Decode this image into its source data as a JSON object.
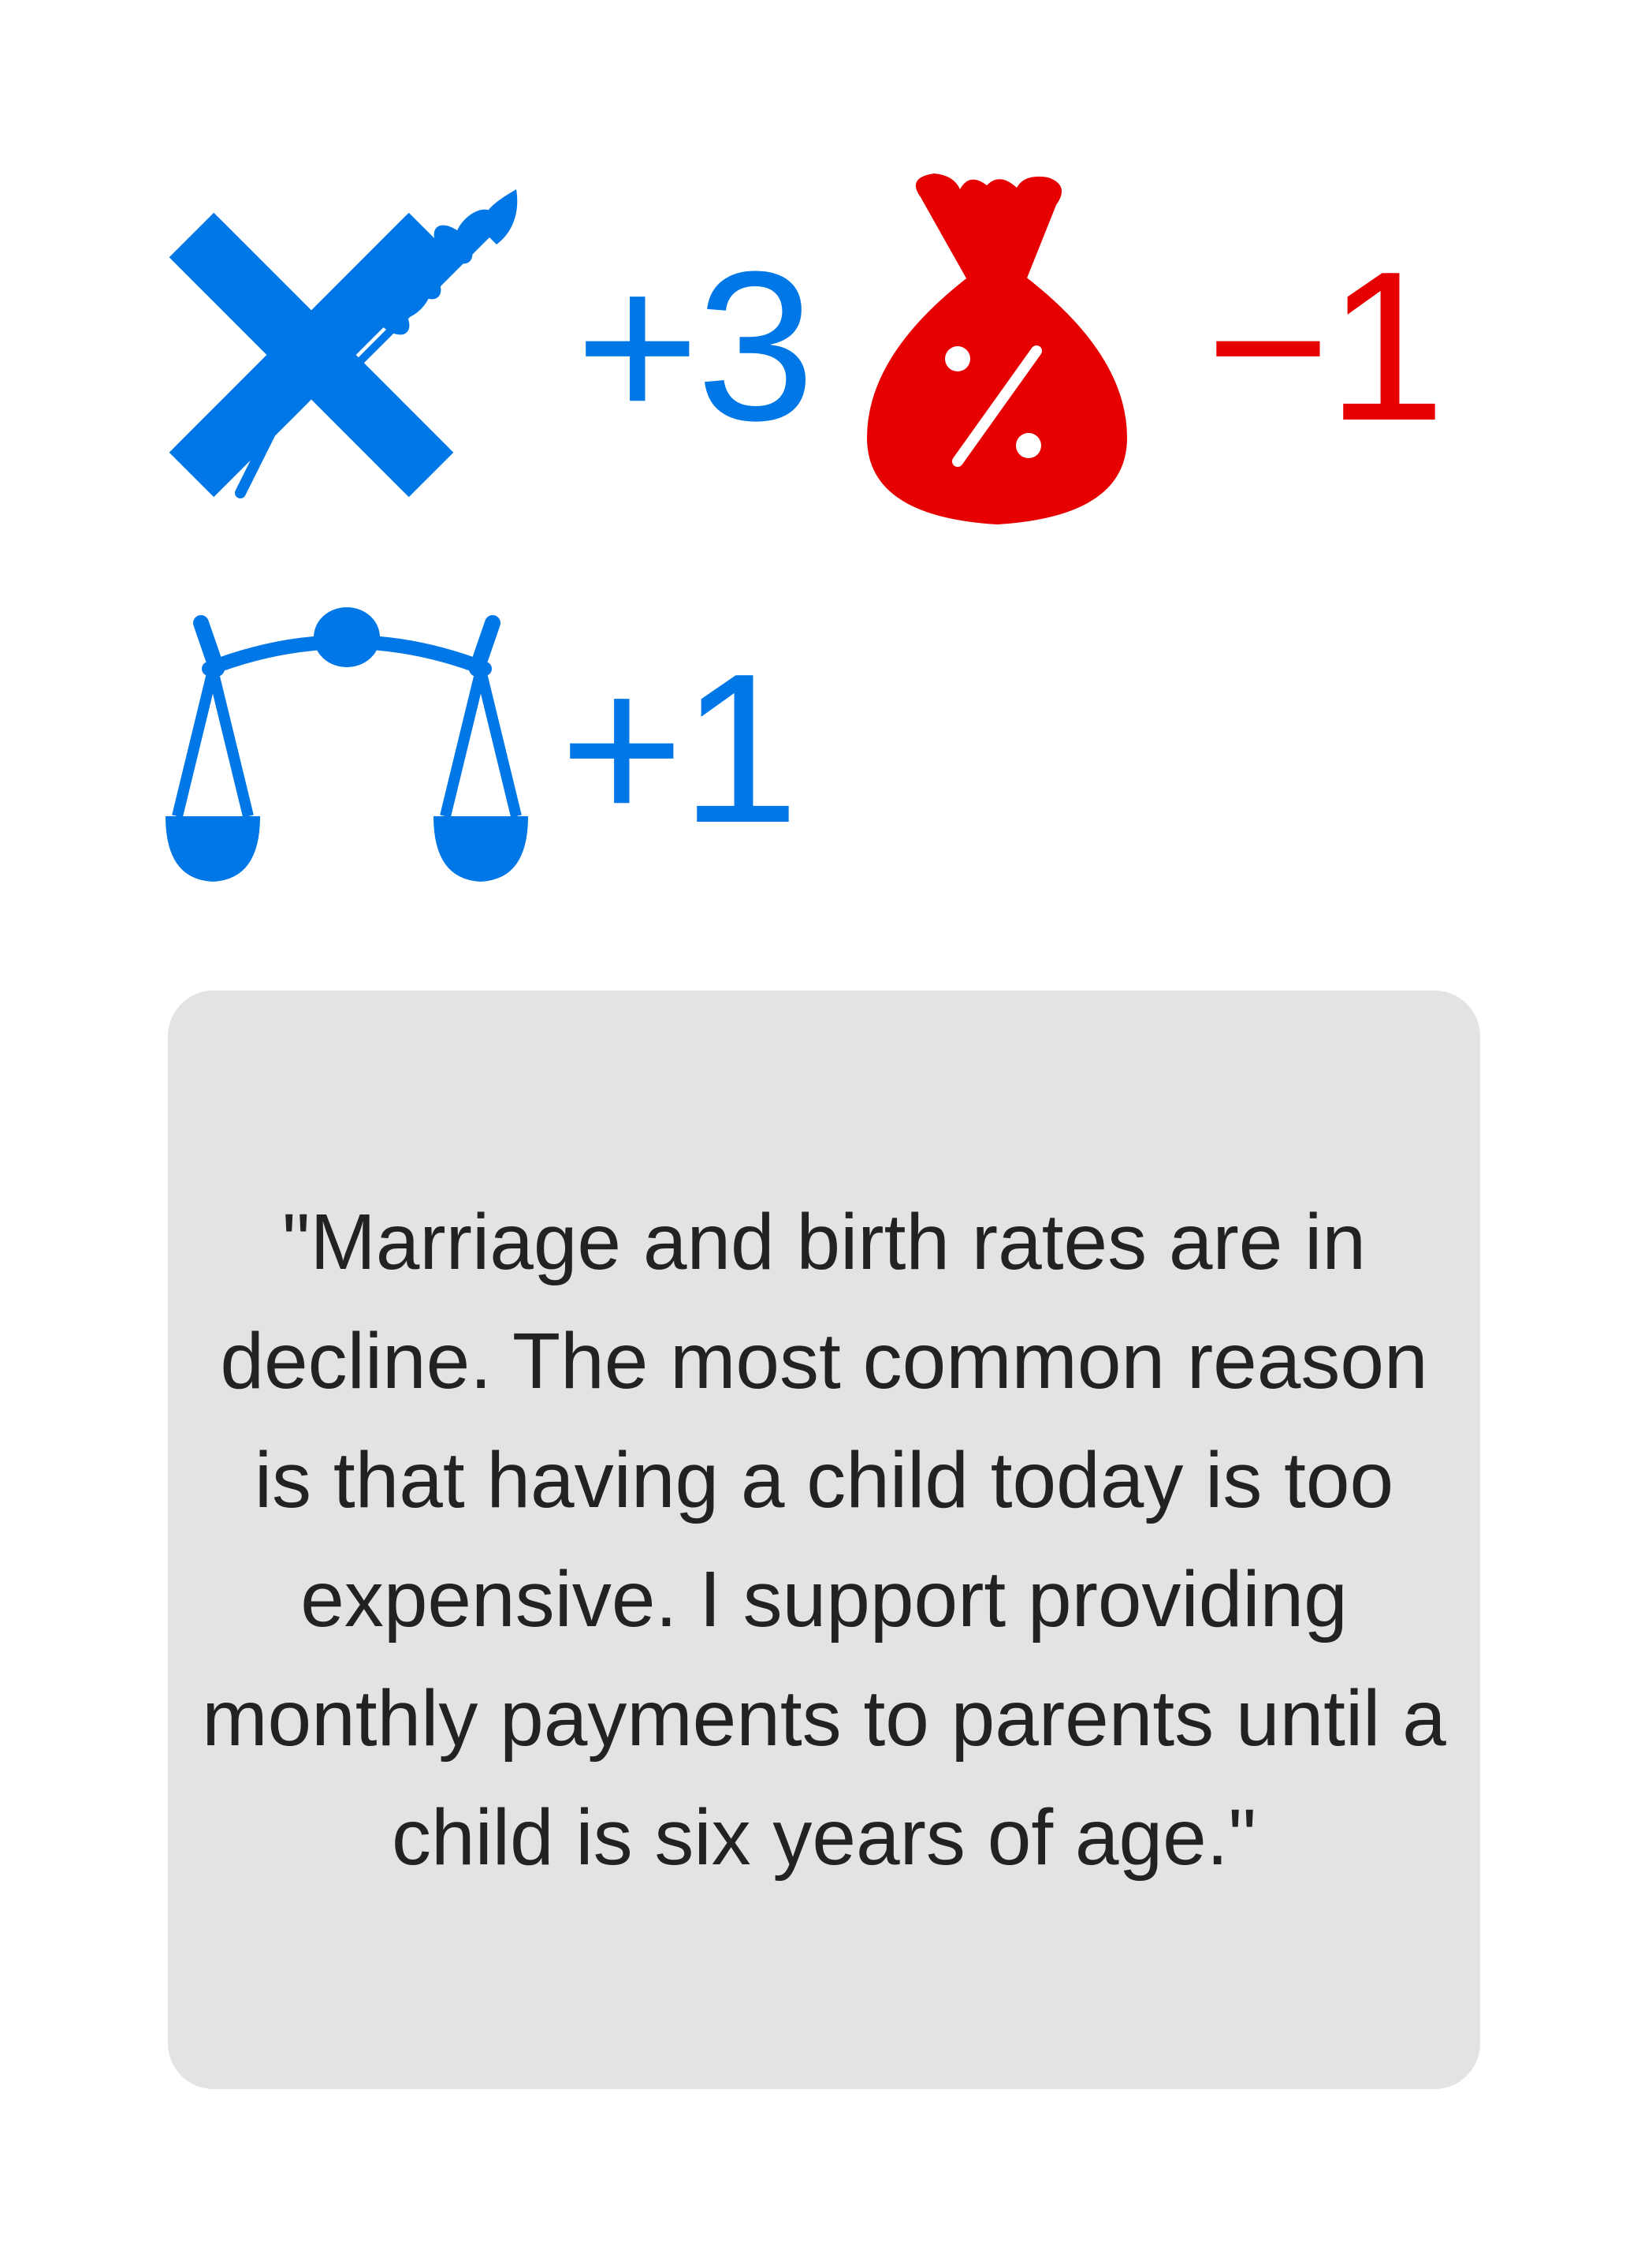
{
  "effects": [
    {
      "icon": "hammer-wheat-icon",
      "value": "+3",
      "color": "#0077e6"
    },
    {
      "icon": "money-bag-percent-icon",
      "value": "−1",
      "color": "#e60000"
    },
    {
      "icon": "scales-of-justice-icon",
      "value": "+1",
      "color": "#0077e6"
    }
  ],
  "quote": {
    "text": "\"Marriage and birth rates are in decline. The most common reason is that having a child today is too expensive. I support providing monthly payments to parents until a child is six years of age.\"",
    "background": "#e3e3e3"
  }
}
